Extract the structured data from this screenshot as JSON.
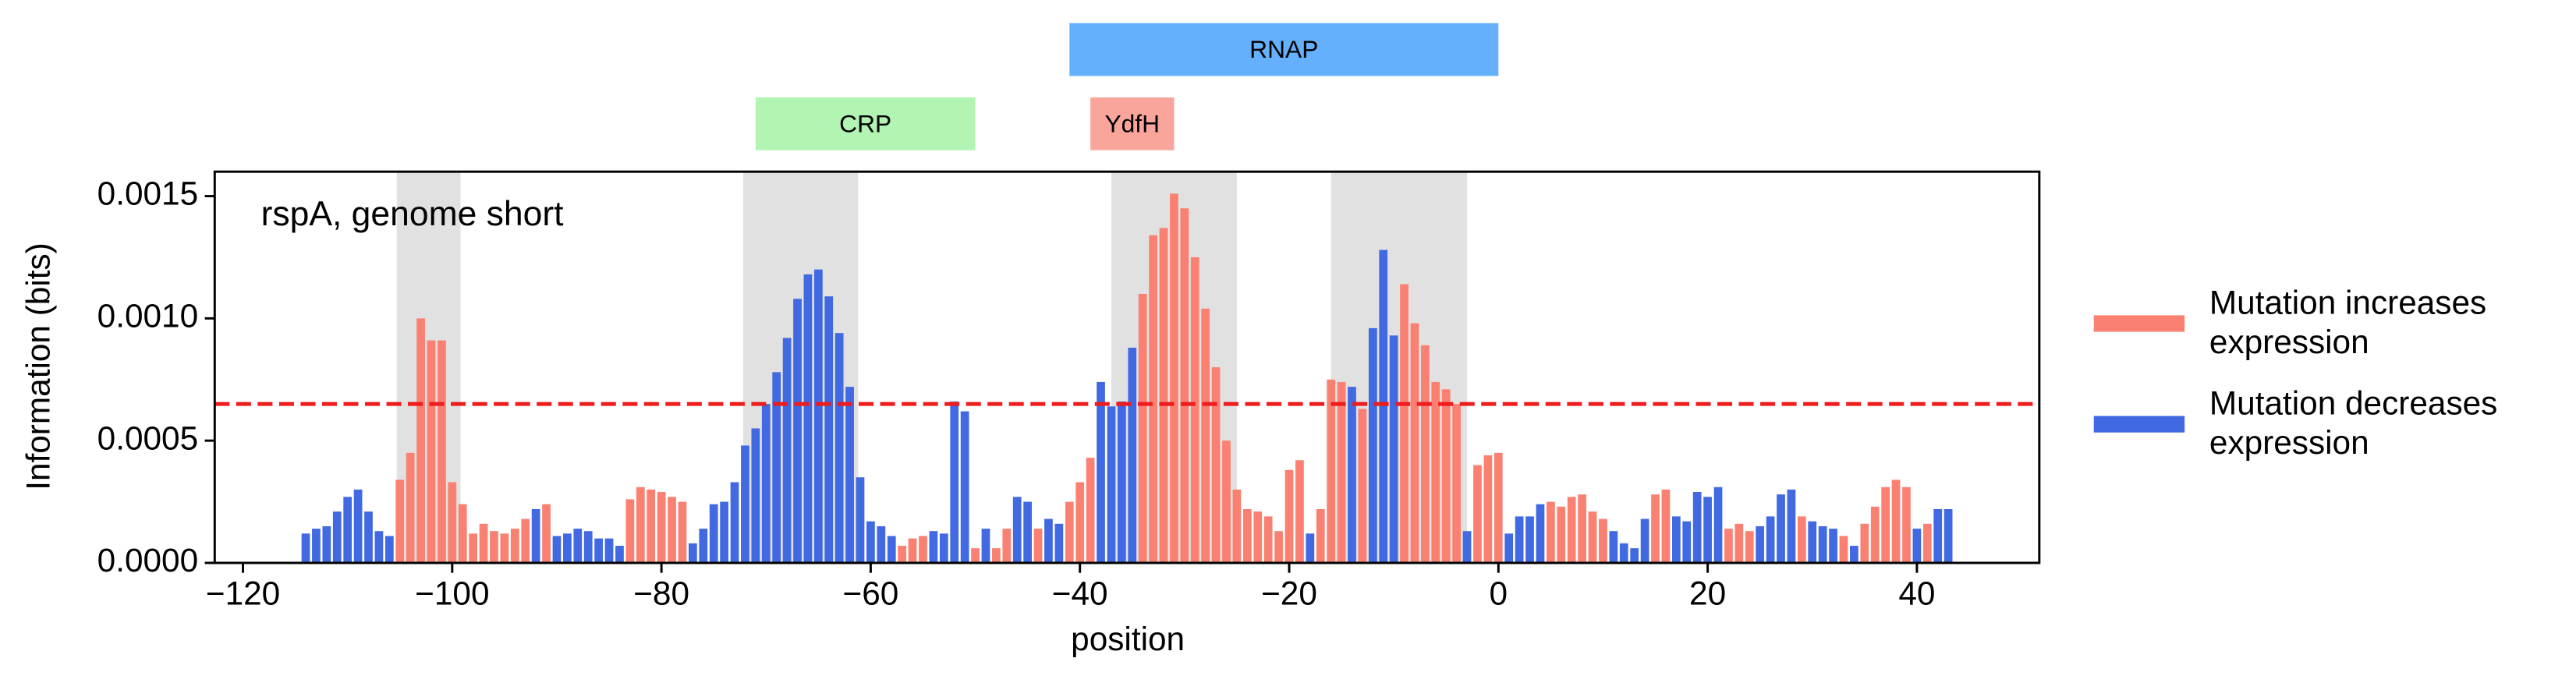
{
  "chart_data": {
    "type": "bar",
    "annotation": "rspA, genome short",
    "xlabel": "position",
    "ylabel": "Information (bits)",
    "xlim": [
      -122.7,
      51.7
    ],
    "ylim": [
      0,
      0.0016
    ],
    "xticks": [
      {
        "value": -120,
        "label": "−120"
      },
      {
        "value": -100,
        "label": "−100"
      },
      {
        "value": -80,
        "label": "−80"
      },
      {
        "value": -60,
        "label": "−60"
      },
      {
        "value": -40,
        "label": "−40"
      },
      {
        "value": -20,
        "label": "−20"
      },
      0,
      20,
      40
    ],
    "yticks": [
      {
        "value": 0,
        "label": "0.0000"
      },
      {
        "value": 0.0005,
        "label": "0.0005"
      },
      {
        "value": 0.001,
        "label": "0.0010"
      },
      {
        "value": 0.0015,
        "label": "0.0015"
      }
    ],
    "threshold": 0.00065,
    "threshold_color": "#ee1c1c",
    "shaded_regions": [
      [
        -105.3,
        -99.2
      ],
      [
        -72.2,
        -61.2
      ],
      [
        -37,
        -25
      ],
      [
        -16,
        -3
      ]
    ],
    "binding_sites": [
      {
        "label": "RNAP",
        "start": -41,
        "end": 0,
        "color": "#64b0fd"
      },
      {
        "label": "CRP",
        "start": -71,
        "end": -50,
        "color": "#b2f4b2"
      },
      {
        "label": "YdfH",
        "start": -39,
        "end": -31,
        "color": "#f9a59b"
      }
    ],
    "legend": "right",
    "series": [
      {
        "name": "Mutation increases expression",
        "color": "#fa8072",
        "x": [
          -105,
          -104,
          -103,
          -102,
          -101,
          -100,
          -99,
          -98,
          -97,
          -96,
          -95,
          -94,
          -93,
          -91,
          -83,
          -82,
          -81,
          -80,
          -79,
          -78,
          -57,
          -56,
          -55,
          -50,
          -48,
          -47,
          -44,
          -41,
          -40,
          -39,
          -34,
          -33,
          -32,
          -31,
          -30,
          -29,
          -28,
          -27,
          -26,
          -25,
          -24,
          -23,
          -22,
          -21,
          -20,
          -19,
          -17,
          -16,
          -15,
          -13,
          -9,
          -8,
          -7,
          -6,
          -5,
          -4,
          -2,
          -1,
          0,
          5,
          6,
          7,
          8,
          9,
          10,
          15,
          16,
          22,
          23,
          24,
          29,
          33,
          35,
          36,
          37,
          38,
          39,
          41
        ],
        "values": [
          0.00034,
          0.00045,
          0.001,
          0.00091,
          0.00091,
          0.00033,
          0.00024,
          0.00012,
          0.00016,
          0.00013,
          0.00012,
          0.00014,
          0.00018,
          0.00024,
          0.00026,
          0.00031,
          0.0003,
          0.00029,
          0.00027,
          0.00025,
          7e-05,
          0.0001,
          0.00011,
          6e-05,
          6e-05,
          0.00014,
          0.00014,
          0.00025,
          0.00033,
          0.00043,
          0.0011,
          0.00134,
          0.00137,
          0.00151,
          0.00145,
          0.00125,
          0.00104,
          0.0008,
          0.0005,
          0.0003,
          0.00022,
          0.00021,
          0.00019,
          0.00013,
          0.00038,
          0.00042,
          0.00022,
          0.00075,
          0.00074,
          0.00063,
          0.00114,
          0.00098,
          0.00089,
          0.00074,
          0.00071,
          0.00065,
          0.0004,
          0.00044,
          0.00045,
          0.00025,
          0.00023,
          0.00027,
          0.00028,
          0.00021,
          0.00018,
          0.00028,
          0.0003,
          0.00014,
          0.00016,
          0.00013,
          0.00019,
          0.00011,
          0.00016,
          0.00023,
          0.00031,
          0.00034,
          0.00031,
          0.00016
        ]
      },
      {
        "name": "Mutation decreases expression",
        "color": "#4169e1",
        "x": [
          -114,
          -113,
          -112,
          -111,
          -110,
          -109,
          -108,
          -107,
          -106,
          -92,
          -90,
          -89,
          -88,
          -87,
          -86,
          -85,
          -84,
          -77,
          -76,
          -75,
          -74,
          -73,
          -72,
          -71,
          -70,
          -69,
          -68,
          -67,
          -66,
          -65,
          -64,
          -63,
          -62,
          -61,
          -60,
          -59,
          -58,
          -54,
          -53,
          -52,
          -51,
          -49,
          -46,
          -45,
          -43,
          -42,
          -38,
          -37,
          -36,
          -35,
          -18,
          -14,
          -12,
          -11,
          -10,
          -3,
          1,
          2,
          3,
          4,
          11,
          12,
          13,
          14,
          17,
          18,
          19,
          20,
          21,
          25,
          26,
          27,
          28,
          30,
          31,
          32,
          34,
          40,
          42,
          43
        ],
        "values": [
          0.00012,
          0.00014,
          0.00015,
          0.00021,
          0.00027,
          0.0003,
          0.00021,
          0.00013,
          0.00011,
          0.00022,
          0.00011,
          0.00012,
          0.00014,
          0.00013,
          0.0001,
          0.0001,
          7e-05,
          8e-05,
          0.00014,
          0.00024,
          0.00025,
          0.00033,
          0.00048,
          0.00055,
          0.00065,
          0.00078,
          0.00092,
          0.00108,
          0.00118,
          0.0012,
          0.00109,
          0.00094,
          0.00072,
          0.00035,
          0.00017,
          0.00015,
          0.00011,
          0.00013,
          0.00012,
          0.00066,
          0.00062,
          0.00014,
          0.00027,
          0.00025,
          0.00018,
          0.00016,
          0.00074,
          0.00064,
          0.00066,
          0.00088,
          0.00012,
          0.00072,
          0.00096,
          0.00128,
          0.00093,
          0.00013,
          0.00012,
          0.00019,
          0.00019,
          0.00024,
          0.00013,
          8e-05,
          6e-05,
          0.00018,
          0.00019,
          0.00017,
          0.00029,
          0.00027,
          0.00031,
          0.00015,
          0.00019,
          0.00028,
          0.0003,
          0.00017,
          0.00015,
          0.00014,
          7e-05,
          0.00014,
          0.00022,
          0.00022
        ]
      }
    ]
  }
}
